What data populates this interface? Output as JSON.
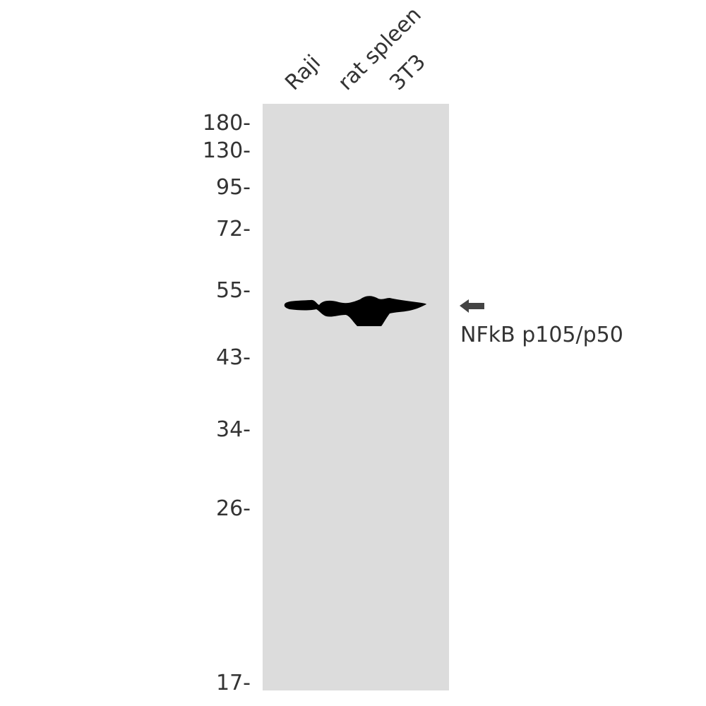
{
  "lanes": [
    "Raji",
    "rat spleen",
    "3T3"
  ],
  "markers": [
    {
      "label": "180-",
      "kda": 180
    },
    {
      "label": "130-",
      "kda": 130
    },
    {
      "label": "95-",
      "kda": 95
    },
    {
      "label": "72-",
      "kda": 72
    },
    {
      "label": "55-",
      "kda": 55
    },
    {
      "label": "43-",
      "kda": 43
    },
    {
      "label": "34-",
      "kda": 34
    },
    {
      "label": "26-",
      "kda": 26
    },
    {
      "label": "17-",
      "kda": 17
    }
  ],
  "target": {
    "label": "NFkB p105/p50",
    "icon": "arrow-left-icon"
  },
  "colors": {
    "membrane": "#dcdcdc",
    "band": "#000000",
    "arrow": "#444444",
    "text": "#333333"
  }
}
